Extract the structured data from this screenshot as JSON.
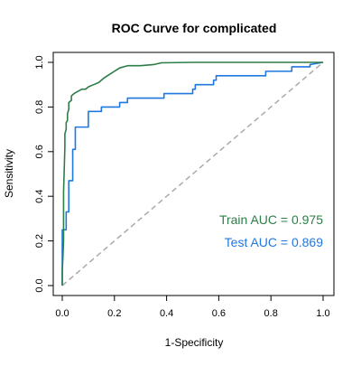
{
  "colors": {
    "train": "#2e7d46",
    "test": "#1f78e0",
    "reference": "#aaaaaa",
    "axis": "#000000"
  },
  "chart_data": {
    "type": "line",
    "title": "ROC Curve for complicated",
    "xlabel": "1-Specificity",
    "ylabel": "Sensitivity",
    "xlim": [
      0,
      1
    ],
    "ylim": [
      0,
      1
    ],
    "x_ticks": [
      "0.0",
      "0.2",
      "0.4",
      "0.6",
      "0.8",
      "1.0"
    ],
    "y_ticks": [
      "0.0",
      "0.2",
      "0.4",
      "0.6",
      "0.8",
      "1.0"
    ],
    "grid": false,
    "series": [
      {
        "key": "train",
        "points": [
          [
            0,
            0
          ],
          [
            0,
            0.06
          ],
          [
            0.005,
            0.2
          ],
          [
            0.005,
            0.3
          ],
          [
            0.005,
            0.42
          ],
          [
            0.01,
            0.62
          ],
          [
            0.01,
            0.68
          ],
          [
            0.015,
            0.7
          ],
          [
            0.015,
            0.73
          ],
          [
            0.02,
            0.74
          ],
          [
            0.02,
            0.77
          ],
          [
            0.025,
            0.79
          ],
          [
            0.025,
            0.82
          ],
          [
            0.035,
            0.83
          ],
          [
            0.035,
            0.85
          ],
          [
            0.045,
            0.86
          ],
          [
            0.06,
            0.87
          ],
          [
            0.075,
            0.88
          ],
          [
            0.09,
            0.88
          ],
          [
            0.1,
            0.89
          ],
          [
            0.12,
            0.9
          ],
          [
            0.14,
            0.91
          ],
          [
            0.15,
            0.92
          ],
          [
            0.16,
            0.93
          ],
          [
            0.18,
            0.945
          ],
          [
            0.2,
            0.96
          ],
          [
            0.22,
            0.975
          ],
          [
            0.25,
            0.985
          ],
          [
            0.3,
            0.985
          ],
          [
            0.35,
            0.99
          ],
          [
            0.38,
            0.998
          ],
          [
            0.5,
            1.0
          ],
          [
            1.0,
            1.0
          ]
        ]
      },
      {
        "key": "test",
        "points": [
          [
            0,
            0
          ],
          [
            0,
            0.25
          ],
          [
            0.015,
            0.25
          ],
          [
            0.015,
            0.33
          ],
          [
            0.025,
            0.33
          ],
          [
            0.025,
            0.47
          ],
          [
            0.04,
            0.47
          ],
          [
            0.04,
            0.61
          ],
          [
            0.05,
            0.61
          ],
          [
            0.05,
            0.71
          ],
          [
            0.1,
            0.71
          ],
          [
            0.1,
            0.78
          ],
          [
            0.15,
            0.78
          ],
          [
            0.15,
            0.8
          ],
          [
            0.22,
            0.8
          ],
          [
            0.22,
            0.82
          ],
          [
            0.25,
            0.82
          ],
          [
            0.25,
            0.84
          ],
          [
            0.39,
            0.84
          ],
          [
            0.39,
            0.86
          ],
          [
            0.5,
            0.86
          ],
          [
            0.5,
            0.88
          ],
          [
            0.51,
            0.88
          ],
          [
            0.51,
            0.9
          ],
          [
            0.58,
            0.9
          ],
          [
            0.58,
            0.92
          ],
          [
            0.59,
            0.92
          ],
          [
            0.59,
            0.94
          ],
          [
            0.78,
            0.94
          ],
          [
            0.78,
            0.96
          ],
          [
            0.88,
            0.96
          ],
          [
            0.88,
            0.98
          ],
          [
            0.95,
            0.98
          ],
          [
            0.95,
            0.99
          ],
          [
            1.0,
            1.0
          ]
        ]
      }
    ],
    "reference_line": [
      [
        0,
        0
      ],
      [
        1,
        1
      ]
    ],
    "annotations": [
      {
        "key": "train",
        "text": "Train AUC = 0.975"
      },
      {
        "key": "test",
        "text": "Test AUC = 0.869"
      }
    ]
  }
}
